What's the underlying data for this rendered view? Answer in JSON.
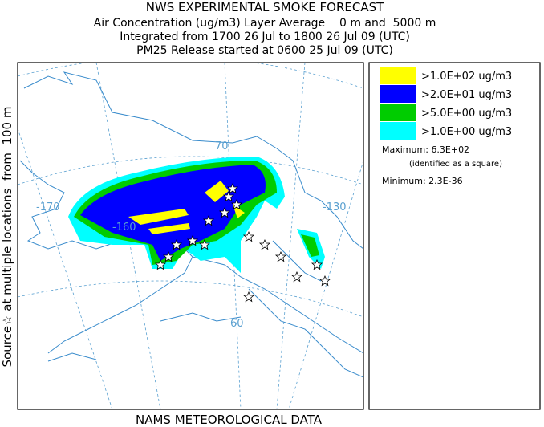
{
  "header": {
    "title": "NWS EXPERIMENTAL SMOKE FORECAST",
    "lines": [
      "Air Concentration (ug/m3) Layer Average    0 m and  5000 m",
      "Integrated from 1700 26 Jul to 1800 26 Jul 09 (UTC)",
      "PM25 Release started at 0600 25 Jul 09 (UTC)"
    ]
  },
  "side_label": "Source☆ at multiple locations  from  100 m",
  "legend": {
    "items": [
      {
        "label": ">1.0E+02 ug/m3",
        "color": "#ffff00"
      },
      {
        "label": ">2.0E+01 ug/m3",
        "color": "#0000ff"
      },
      {
        "label": ">5.0E+00 ug/m3",
        "color": "#00cc00"
      },
      {
        "label": ">1.0E+00 ug/m3",
        "color": "#00ffff"
      }
    ],
    "maximum": "Maximum: 6.3E+02",
    "max_note": "(identified as a square)",
    "minimum": "Minimum: 2.3E-36"
  },
  "map": {
    "graticule_labels": [
      "70",
      "-170",
      "-160",
      "-130",
      "60"
    ]
  },
  "footer": "NAMS METEOROLOGICAL DATA"
}
